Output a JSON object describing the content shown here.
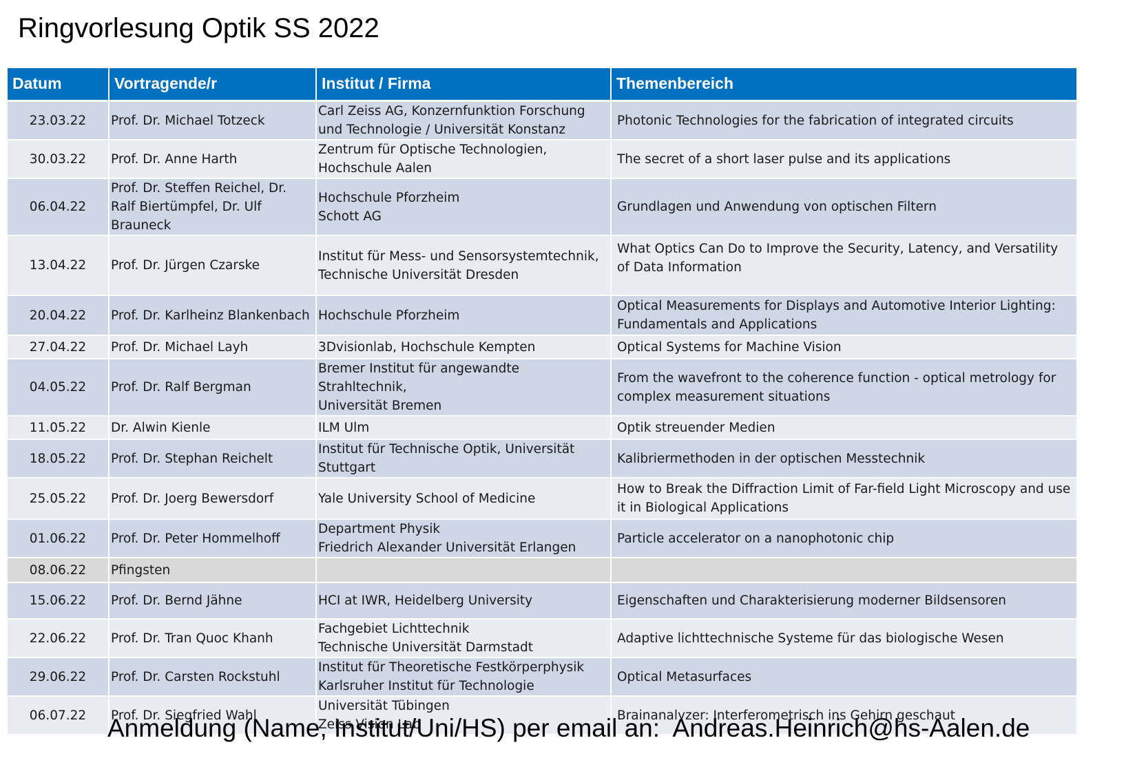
{
  "page": {
    "title": "Ringvorlesung Optik SS 2022",
    "footer": "Anmeldung (Name, Institut/Uni/HS) per email an:  Andreas.Heinrich@hs-Aalen.de"
  },
  "table": {
    "headers": [
      "Datum",
      "Vortragende/r",
      "Institut / Firma",
      "Themenbereich"
    ],
    "rows": [
      {
        "date": "23.03.22",
        "speaker": "Prof. Dr. Michael Totzeck",
        "institute": "Carl Zeiss AG, Konzernfunktion Forschung und Technologie / Universität Konstanz",
        "topic": "Photonic Technologies for the fabrication of integrated circuits"
      },
      {
        "date": "30.03.22",
        "speaker": "Prof. Dr. Anne Harth",
        "institute": "Zentrum für Optische Technologien,\nHochschule Aalen",
        "topic": "The secret of a short laser pulse and its applications"
      },
      {
        "date": "06.04.22",
        "speaker": "Prof. Dr. Steffen Reichel, Dr. Ralf Biertümpfel, Dr. Ulf Brauneck",
        "institute": "Hochschule Pforzheim\nSchott AG",
        "topic": "Grundlagen und Anwendung von optischen Filtern"
      },
      {
        "date": "13.04.22",
        "speaker": "Prof. Dr. Jürgen Czarske",
        "institute": "Institut für Mess- und Sensorsystemtechnik,\nTechnische Universität Dresden",
        "topic": "What Optics Can Do to Improve the Security, Latency, and Versatility of Data Information"
      },
      {
        "date": "20.04.22",
        "speaker": "Prof. Dr. Karlheinz Blankenbach",
        "institute": "Hochschule Pforzheim",
        "topic": "Optical Measurements for Displays and Automotive Interior Lighting: Fundamentals and Applications"
      },
      {
        "date": "27.04.22",
        "speaker": "Prof. Dr. Michael Layh",
        "institute": "3Dvisionlab, Hochschule Kempten",
        "topic": "Optical Systems for Machine Vision"
      },
      {
        "date": "04.05.22",
        "speaker": "Prof. Dr.  Ralf Bergman",
        "institute": "Bremer Institut für angewandte Strahltechnik,\nUniversität Bremen",
        "topic": "From the wavefront to the coherence function - optical metrology for complex measurement situations"
      },
      {
        "date": "11.05.22",
        "speaker": "Dr. Alwin Kienle",
        "institute": "ILM Ulm",
        "topic": "Optik streuender Medien"
      },
      {
        "date": "18.05.22",
        "speaker": "Prof. Dr. Stephan Reichelt",
        "institute": "Institut für Technische Optik, Universität Stuttgart",
        "topic": "Kalibriermethoden in der optischen Messtechnik"
      },
      {
        "date": "25.05.22",
        "speaker": "Prof. Dr. Joerg Bewersdorf",
        "institute": "Yale University School of Medicine",
        "topic": "How to Break the Diffraction Limit of Far-field Light Microscopy and use it in Biological Applications"
      },
      {
        "date": "01.06.22",
        "speaker": "Prof. Dr. Peter Hommelhoff",
        "institute": "Department Physik\nFriedrich Alexander Universität Erlangen",
        "topic": "Particle accelerator on a nanophotonic chip"
      },
      {
        "date": "08.06.22",
        "speaker": "Pfingsten",
        "institute": "",
        "topic": ""
      },
      {
        "date": "15.06.22",
        "speaker": "Prof. Dr. Bernd Jähne",
        "institute": "HCI at IWR, Heidelberg University",
        "topic": "Eigenschaften und Charakterisierung moderner Bildsensoren"
      },
      {
        "date": "22.06.22",
        "speaker": "Prof. Dr. Tran Quoc Khanh",
        "institute": "Fachgebiet Lichttechnik\nTechnische Universität Darmstadt",
        "topic": "Adaptive lichttechnische Systeme für das biologische Wesen"
      },
      {
        "date": "29.06.22",
        "speaker": "Prof. Dr. Carsten Rockstuhl",
        "institute": " Institut für Theoretische Festkörperphysik\n Karlsruher Institut für Technologie",
        "topic": "Optical Metasurfaces"
      },
      {
        "date": "06.07.22",
        "speaker": "Prof. Dr. Siegfried Wahl",
        "institute": "Universität Tübingen\nZeiss Vision Lab",
        "topic": "Brainanalyzer: Interferometrisch ins Gehirn geschaut"
      }
    ]
  }
}
